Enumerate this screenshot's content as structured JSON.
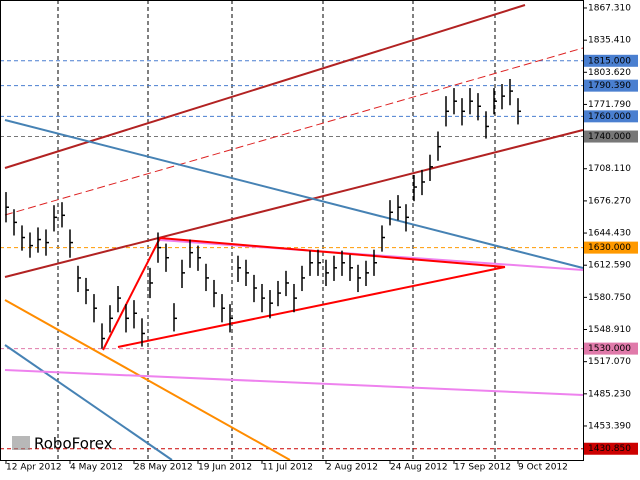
{
  "chart_data": {
    "type": "hlc",
    "color": "#000000",
    "categories": [
      "12 Apr 2012",
      null,
      null,
      null,
      null,
      null,
      null,
      null,
      "4 May 2012",
      null,
      null,
      null,
      null,
      null,
      null,
      null,
      "28 May 2012",
      null,
      null,
      null,
      null,
      null,
      null,
      null,
      "19 Jun 2012",
      null,
      null,
      null,
      null,
      null,
      null,
      null,
      "11 Jul 2012",
      null,
      null,
      null,
      null,
      null,
      null,
      null,
      "2 Aug 2012",
      null,
      null,
      null,
      null,
      null,
      null,
      null,
      "24 Aug 2012",
      null,
      null,
      null,
      null,
      null,
      null,
      null,
      "17 Sep 2012",
      null,
      null,
      null,
      null,
      null,
      null,
      null,
      "9 Oct 2012"
    ],
    "high": [
      1685,
      1668,
      1652,
      1645,
      1650,
      1648,
      1672,
      1675,
      1648,
      1612,
      1600,
      1584,
      1555,
      1573,
      1592,
      1574,
      1578,
      1560,
      1610,
      1645,
      1634,
      1575,
      1618,
      1638,
      1632,
      1614,
      1598,
      1584,
      1574,
      1622,
      1618,
      1603,
      1594,
      1588,
      1597,
      1607,
      1594,
      1612,
      1627,
      1628,
      1618,
      1622,
      1627,
      1623,
      1613,
      1617,
      1628,
      1652,
      1677,
      1682,
      1673,
      1702,
      1707,
      1722,
      1745,
      1780,
      1788,
      1778,
      1788,
      1783,
      1765,
      1788,
      1792,
      1797,
      1778
    ],
    "low": [
      1655,
      1642,
      1627,
      1620,
      1625,
      1622,
      1646,
      1650,
      1620,
      1586,
      1574,
      1556,
      1530,
      1546,
      1566,
      1546,
      1550,
      1532,
      1580,
      1615,
      1606,
      1547,
      1590,
      1610,
      1607,
      1587,
      1571,
      1556,
      1546,
      1596,
      1592,
      1576,
      1566,
      1560,
      1572,
      1582,
      1566,
      1587,
      1602,
      1602,
      1592,
      1597,
      1602,
      1597,
      1586,
      1592,
      1602,
      1626,
      1652,
      1657,
      1646,
      1676,
      1682,
      1696,
      1716,
      1750,
      1762,
      1751,
      1762,
      1756,
      1738,
      1762,
      1767,
      1771,
      1752
    ],
    "close": [
      1670,
      1655,
      1640,
      1632,
      1638,
      1635,
      1660,
      1662,
      1635,
      1600,
      1588,
      1570,
      1540,
      1560,
      1580,
      1560,
      1565,
      1545,
      1595,
      1630,
      1620,
      1560,
      1605,
      1625,
      1620,
      1600,
      1585,
      1570,
      1560,
      1610,
      1605,
      1590,
      1580,
      1575,
      1585,
      1595,
      1580,
      1600,
      1615,
      1615,
      1605,
      1610,
      1615,
      1610,
      1600,
      1605,
      1615,
      1640,
      1665,
      1670,
      1660,
      1690,
      1695,
      1710,
      1730,
      1765,
      1775,
      1765,
      1775,
      1770,
      1750,
      1775,
      1780,
      1785,
      1765
    ],
    "ylim": [
      1419.7,
      1875.2
    ],
    "yticks": [
      {
        "value": 1867.31,
        "label": "1867.310"
      },
      {
        "value": 1835.41,
        "label": "1835.410"
      },
      {
        "value": 1803.62,
        "label": "1803.620"
      },
      {
        "value": 1771.79,
        "label": "1771.790"
      },
      {
        "value": 1708.11,
        "label": "1708.110"
      },
      {
        "value": 1676.27,
        "label": "1676.270"
      },
      {
        "value": 1644.43,
        "label": "1644.430"
      },
      {
        "value": 1612.59,
        "label": "1612.590"
      },
      {
        "value": 1580.75,
        "label": "1580.750"
      },
      {
        "value": 1548.91,
        "label": "1548.910"
      },
      {
        "value": 1517.07,
        "label": "1517.070"
      },
      {
        "value": 1485.23,
        "label": "1485.230"
      },
      {
        "value": 1453.39,
        "label": "1453.390"
      }
    ],
    "levels": [
      {
        "value": 1815,
        "label": "1815.000",
        "color": "#4a7fd0"
      },
      {
        "value": 1790.39,
        "label": "1790.390",
        "color": "#4a7fd0"
      },
      {
        "value": 1760,
        "label": "1760.000",
        "color": "#4a7fd0"
      },
      {
        "value": 1740,
        "label": "1740.000",
        "color": "#777777"
      },
      {
        "value": 1630,
        "label": "1630.000",
        "color": "#ff9900"
      },
      {
        "value": 1530,
        "label": "1530.000",
        "color": "#e07aaa"
      },
      {
        "value": 1430.85,
        "label": "1430.850",
        "color": "#cc0000"
      }
    ],
    "watermark": "RoboForex"
  }
}
